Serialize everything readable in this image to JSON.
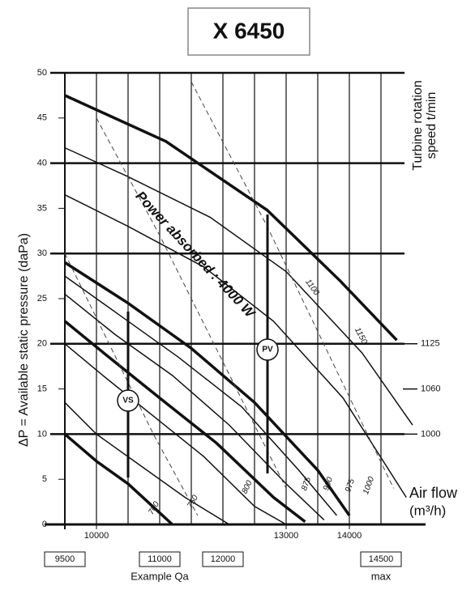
{
  "chart_data": {
    "type": "line",
    "title": "X 6450",
    "y_label": "ΔP = Available static pressure (daPa)",
    "y2_label_lines": [
      "Turbine rotation",
      "speed t/min"
    ],
    "x_label_lines": [
      "Air flow",
      "(m³/h)"
    ],
    "power_label": "Power absorbed : 4000 W",
    "point_labels": [
      "VS",
      "PV"
    ],
    "xlim": [
      9500,
      15000
    ],
    "ylim": [
      0,
      50
    ],
    "yticks": [
      0,
      5,
      10,
      15,
      20,
      25,
      30,
      35,
      40,
      45,
      50
    ],
    "xticks": [
      10000,
      13000,
      14000
    ],
    "xgrid": [
      10000,
      10500,
      11000,
      11500,
      12000,
      12500,
      13000,
      13500,
      14000,
      14500
    ],
    "grid": true,
    "right_labels": [
      {
        "value": 20,
        "label": "1125"
      },
      {
        "value": 15,
        "label": "1060"
      },
      {
        "value": 10,
        "label": "1000"
      }
    ],
    "flow_boxes": [
      {
        "value": 9500,
        "label": "9500"
      },
      {
        "value": 11000,
        "label": "11000"
      },
      {
        "value": 12000,
        "label": "12000"
      },
      {
        "value": 14500,
        "label": "14500"
      }
    ],
    "flow_notes": [
      {
        "value": 11000,
        "label": "Example Qa"
      },
      {
        "value": 14500,
        "label": "max"
      }
    ],
    "curve_labels": [
      "1150",
      "1100",
      "1000",
      "975",
      "900",
      "875",
      "800",
      "750",
      "700"
    ],
    "series": [
      {
        "color": "#111",
        "thick": true,
        "x": [
          9500,
          11100,
          12700,
          13850,
          14750
        ],
        "values": [
          47.5,
          42.4,
          34.8,
          27,
          20.4
        ]
      },
      {
        "color": "#111",
        "thick": false,
        "x": [
          9500,
          10500,
          11800,
          13000,
          14200,
          15000
        ],
        "values": [
          41.7,
          38.5,
          34,
          28,
          19,
          11
        ]
      },
      {
        "color": "#111",
        "thick": false,
        "x": [
          9500,
          10500,
          11700,
          12800,
          13900,
          14900
        ],
        "values": [
          36.5,
          33,
          28.5,
          22.5,
          14,
          3
        ]
      },
      {
        "color": "#111",
        "thick": true,
        "x": [
          9500,
          10500,
          11500,
          12500,
          13500,
          14000
        ],
        "values": [
          29,
          24.5,
          19.5,
          13.5,
          6,
          1
        ]
      },
      {
        "color": "#111",
        "thick": false,
        "x": [
          9500,
          10400,
          11300,
          12300,
          13200,
          13800
        ],
        "values": [
          27.5,
          23,
          18.5,
          13,
          6,
          1
        ]
      },
      {
        "color": "#111",
        "thick": false,
        "x": [
          9500,
          10300,
          11200,
          12100,
          13000,
          13600
        ],
        "values": [
          25.5,
          21,
          16.5,
          11,
          4.5,
          0.5
        ]
      },
      {
        "color": "#111",
        "thick": true,
        "x": [
          9500,
          10200,
          11000,
          11900,
          12800,
          13300
        ],
        "values": [
          22.5,
          18.5,
          14,
          9,
          3,
          0.3
        ]
      },
      {
        "color": "#111",
        "thick": false,
        "x": [
          9500,
          10100,
          10900,
          11700,
          12500,
          13000
        ],
        "values": [
          20,
          16.5,
          12,
          7.5,
          2,
          0
        ]
      },
      {
        "color": "#111",
        "thick": false,
        "x": [
          9500,
          10000,
          10700,
          11400,
          12100
        ],
        "values": [
          13.5,
          10,
          6.5,
          3,
          0
        ]
      },
      {
        "color": "#111",
        "thick": true,
        "x": [
          9500,
          10000,
          10500,
          11200
        ],
        "values": [
          10,
          7,
          4.5,
          0
        ]
      },
      {
        "color": "#444",
        "dashed": true,
        "x": [
          10000,
          11000,
          12000,
          13000
        ],
        "values": [
          45,
          32,
          18,
          4
        ]
      },
      {
        "color": "#444",
        "dashed": true,
        "x": [
          11500,
          12700,
          13800,
          14700
        ],
        "values": [
          49,
          33,
          17,
          4
        ]
      },
      {
        "color": "#444",
        "dashed": true,
        "x": [
          9500,
          10200,
          10900,
          11600
        ],
        "values": [
          30,
          20,
          10,
          1
        ]
      }
    ]
  }
}
